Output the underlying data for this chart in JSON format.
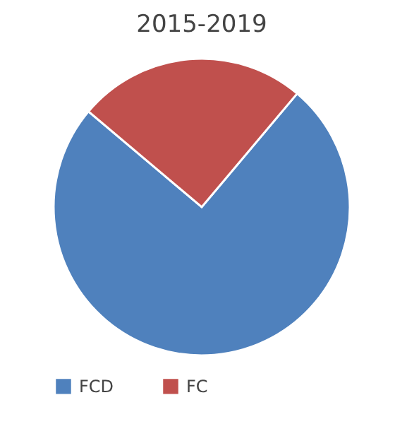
{
  "chart_data": {
    "type": "pie",
    "title": "2015-2019",
    "categories": [
      "FCD",
      "FC"
    ],
    "values": [
      75,
      25
    ],
    "colors": [
      "#4f81bd",
      "#c0504d"
    ],
    "legend": "bottom"
  }
}
